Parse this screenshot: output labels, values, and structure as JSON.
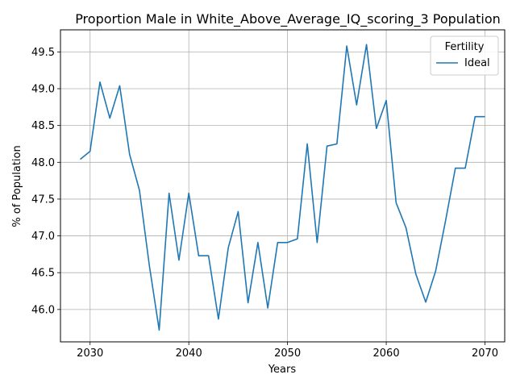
{
  "chart_data": {
    "type": "line",
    "title": "Proportion Male in White_Above_Average_IQ_scoring_3 Population",
    "xlabel": "Years",
    "ylabel": "% of Population",
    "xlim": [
      2027,
      2072
    ],
    "ylim": [
      45.56,
      49.8
    ],
    "xticks": [
      2030,
      2040,
      2050,
      2060,
      2070
    ],
    "yticks": [
      46.0,
      46.5,
      47.0,
      47.5,
      48.0,
      48.5,
      49.0,
      49.5
    ],
    "ytick_labels": [
      "46.0",
      "46.5",
      "47.0",
      "47.5",
      "48.0",
      "48.5",
      "49.0",
      "49.5"
    ],
    "grid": true,
    "legend": {
      "title": "Fertility",
      "position": "top-right"
    },
    "series": [
      {
        "name": "Ideal",
        "color": "#1f77b4",
        "x": [
          2029,
          2030,
          2031,
          2032,
          2033,
          2034,
          2035,
          2036,
          2037,
          2038,
          2039,
          2040,
          2041,
          2042,
          2043,
          2044,
          2045,
          2046,
          2047,
          2048,
          2049,
          2050,
          2051,
          2052,
          2053,
          2054,
          2055,
          2056,
          2057,
          2058,
          2059,
          2060,
          2061,
          2062,
          2063,
          2064,
          2065,
          2066,
          2067,
          2068,
          2069,
          2070
        ],
        "values": [
          48.04,
          48.15,
          49.09,
          48.6,
          49.04,
          48.11,
          47.62,
          46.6,
          45.72,
          47.58,
          46.67,
          47.58,
          46.73,
          46.73,
          45.87,
          46.84,
          47.33,
          46.09,
          46.91,
          46.02,
          46.91,
          46.91,
          46.96,
          48.25,
          46.91,
          48.22,
          48.25,
          49.58,
          48.78,
          49.6,
          48.46,
          48.84,
          47.45,
          47.11,
          46.48,
          46.1,
          46.52,
          47.2,
          47.92,
          47.92,
          48.62,
          48.62
        ]
      }
    ]
  }
}
